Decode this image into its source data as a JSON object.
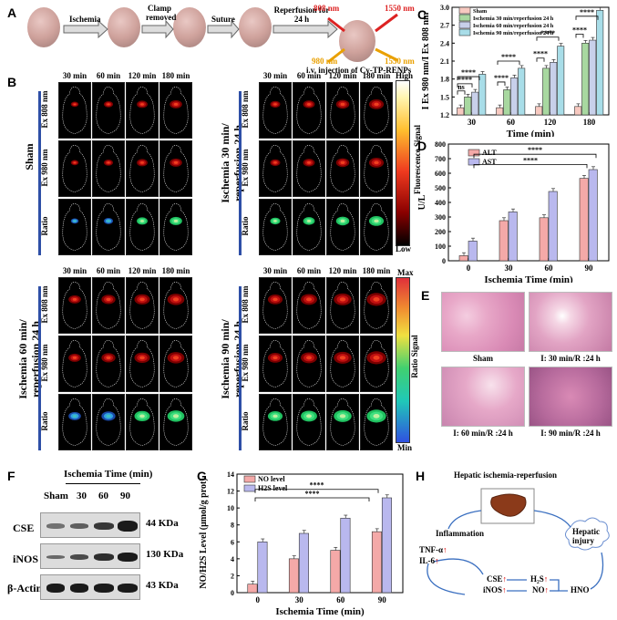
{
  "figure": {
    "panelA": {
      "label": "A",
      "steps": [
        "Ischemia",
        "Clamp removed",
        "Suture",
        "Reperfusion for 24 h"
      ],
      "wavelengths": [
        "808 nm",
        "1550 nm",
        "980 nm",
        "1550 nm"
      ],
      "injection": "i.v. injection of  Cy-TP-RENPs"
    },
    "panelB": {
      "label": "B",
      "times": [
        "30 min",
        "60 min",
        "120 min",
        "180 min"
      ],
      "rows": [
        "Ex 808 nm",
        "Ex 980 nm",
        "Ratio"
      ],
      "groups": [
        "Sham",
        "Ischemia 30 min/ reperfusion 24 h",
        "Ischemia 60 min/ reperfusion 24 h",
        "Ischemia 90 min/ reperfusion 24 h"
      ],
      "fluor_scale": {
        "title": "Fluorescence Signal",
        "high": "High",
        "low": "Low"
      },
      "ratio_scale": {
        "title": "Ratio Signal",
        "max": "Max",
        "min": "Min"
      }
    },
    "panelE": {
      "label": "E",
      "captions": [
        "Sham",
        "I: 30 min/R :24 h",
        "I: 60 min/R :24 h",
        "I: 90 min/R :24 h"
      ]
    },
    "panelF": {
      "label": "F",
      "title": "Ischemia Time (min)",
      "lanes": [
        "Sham",
        "30",
        "60",
        "90"
      ],
      "proteins": [
        "CSE",
        "iNOS",
        "β-Actin"
      ],
      "sizes": [
        "44 KDa",
        "130 KDa",
        "43 KDa"
      ]
    },
    "panelH": {
      "label": "H",
      "title": "Hepatic ischemia-reperfusion",
      "inflammation": "Inflammation",
      "tnf": "TNF-α",
      "il6": "IL-6",
      "cse": "CSE",
      "h2s": "H₂S",
      "inos": "iNOS",
      "no": "NO",
      "hno": "HNO",
      "injury": "Hepatic injury",
      "arrow_up": "↑"
    }
  },
  "chart_data": [
    {
      "panel": "C",
      "type": "bar",
      "categories": [
        "30",
        "60",
        "120",
        "180"
      ],
      "series": [
        {
          "name": "Sham",
          "color": "#f7c9c0",
          "values": [
            1.32,
            1.32,
            1.34,
            1.34
          ]
        },
        {
          "name": "Ischemia 30 min/reperfusion 24 h",
          "color": "#a8d8a0",
          "values": [
            1.5,
            1.62,
            1.98,
            2.4
          ]
        },
        {
          "name": "Ischemia 60 min/reperfusion 24 h",
          "color": "#c8d0ea",
          "values": [
            1.58,
            1.82,
            2.08,
            2.45
          ]
        },
        {
          "name": "Ischemia 90 min/reperfusion 24 h",
          "color": "#a8dde8",
          "values": [
            1.88,
            1.98,
            2.35,
            2.95
          ]
        }
      ],
      "xlabel": "Time (min)",
      "ylabel": "I Ex 980 nm/I Ex 808 nm",
      "ylim": [
        1.2,
        3.0
      ],
      "yticks": [
        "1.2",
        "1.5",
        "1.8",
        "2.1",
        "2.4",
        "2.7",
        "3.0"
      ],
      "sig": [
        "ns",
        "****"
      ]
    },
    {
      "panel": "D",
      "type": "bar",
      "categories": [
        "0",
        "30",
        "60",
        "90"
      ],
      "series": [
        {
          "name": "ALT",
          "color": "#f4a9a8",
          "values": [
            35,
            275,
            295,
            565
          ]
        },
        {
          "name": "AST",
          "color": "#b9b8ee",
          "values": [
            135,
            335,
            475,
            625
          ]
        }
      ],
      "xlabel": "Ischemia Time (min)",
      "ylabel": "U/L",
      "ylim": [
        0,
        800
      ],
      "yticks": [
        "0",
        "100",
        "200",
        "300",
        "400",
        "500",
        "600",
        "700",
        "800"
      ],
      "sig": [
        "****",
        "****"
      ]
    },
    {
      "panel": "G",
      "type": "bar",
      "categories": [
        "0",
        "30",
        "60",
        "90"
      ],
      "series": [
        {
          "name": "NO level",
          "color": "#f4a9a8",
          "values": [
            1.0,
            4.0,
            5.0,
            7.2
          ]
        },
        {
          "name": "H2S level",
          "color": "#b9b8ee",
          "values": [
            6.0,
            7.0,
            8.8,
            11.2
          ]
        }
      ],
      "xlabel": "Ischemia Time (min)",
      "ylabel": "NO/H2S Level (μmol/g prot)",
      "ylim": [
        0,
        14
      ],
      "yticks": [
        "0",
        "2",
        "4",
        "6",
        "8",
        "10",
        "12",
        "14"
      ],
      "sig": [
        "****",
        "****"
      ]
    }
  ]
}
